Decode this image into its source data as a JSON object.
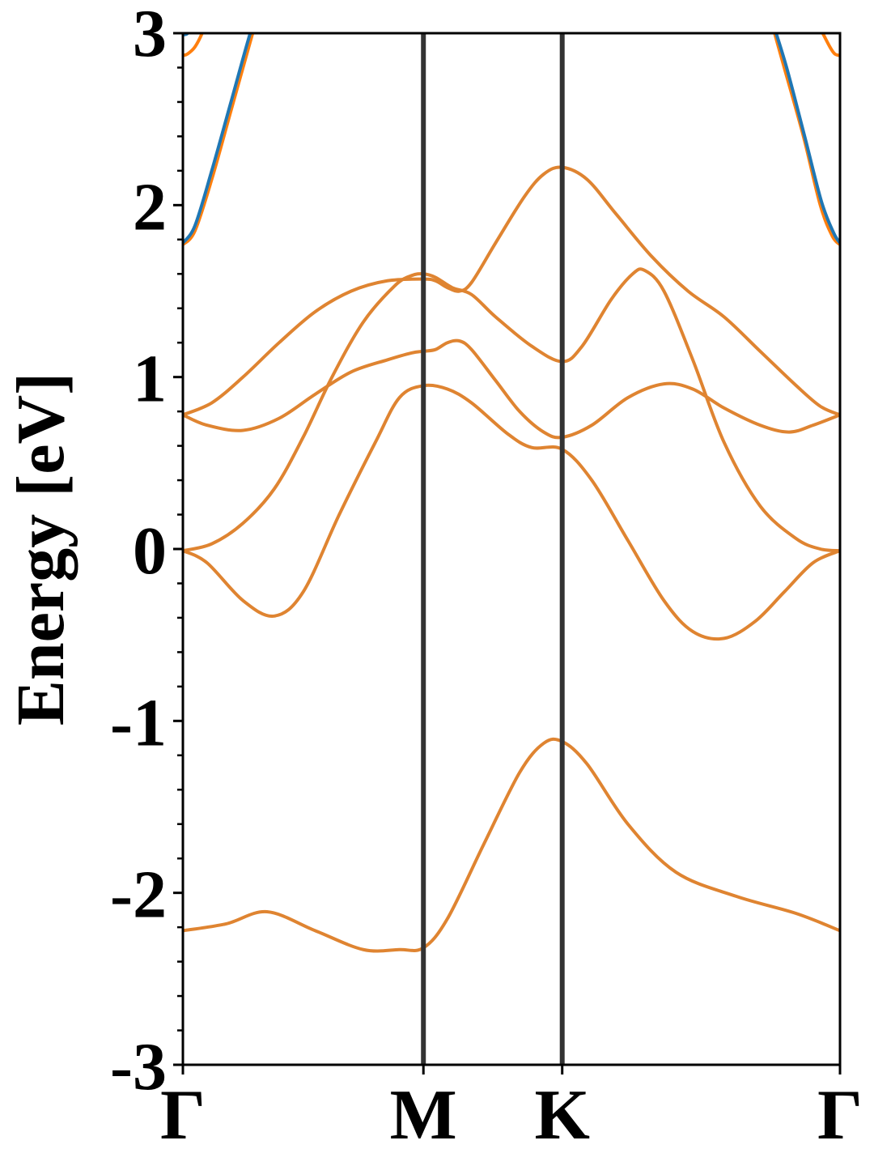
{
  "chart_data": {
    "type": "line",
    "title": "",
    "xlabel": "",
    "ylabel": "Energy [eV]",
    "ylim": [
      -3,
      3
    ],
    "yticks": [
      -3,
      -2,
      -1,
      0,
      1,
      2,
      3
    ],
    "y_minor_step": 0.2,
    "xlim": [
      0,
      2.732
    ],
    "kpath": [
      {
        "label": "Γ",
        "x": 0
      },
      {
        "label": "M",
        "x": 1.0
      },
      {
        "label": "K",
        "x": 1.577
      },
      {
        "label": "Γ",
        "x": 2.732
      }
    ],
    "grid": false,
    "legend": "none",
    "colors": {
      "spin_up": "#1f77b4",
      "spin_down": "#ff7f0e",
      "overlap": "#df8431",
      "kline": "#333333"
    },
    "series": [
      {
        "id": "band1",
        "points": [
          [
            0,
            -2.22
          ],
          [
            0.18,
            -2.18
          ],
          [
            0.35,
            -2.11
          ],
          [
            0.55,
            -2.22
          ],
          [
            0.75,
            -2.33
          ],
          [
            0.9,
            -2.33
          ],
          [
            1.0,
            -2.32
          ],
          [
            1.1,
            -2.15
          ],
          [
            1.25,
            -1.72
          ],
          [
            1.4,
            -1.3
          ],
          [
            1.5,
            -1.13
          ],
          [
            1.577,
            -1.12
          ],
          [
            1.68,
            -1.25
          ],
          [
            1.85,
            -1.6
          ],
          [
            2.05,
            -1.88
          ],
          [
            2.3,
            -2.02
          ],
          [
            2.55,
            -2.12
          ],
          [
            2.732,
            -2.22
          ]
        ]
      },
      {
        "id": "band2",
        "points": [
          [
            0,
            -0.01
          ],
          [
            0.1,
            -0.08
          ],
          [
            0.25,
            -0.3
          ],
          [
            0.38,
            -0.39
          ],
          [
            0.5,
            -0.25
          ],
          [
            0.65,
            0.2
          ],
          [
            0.8,
            0.62
          ],
          [
            0.9,
            0.88
          ],
          [
            1.0,
            0.95
          ],
          [
            1.1,
            0.93
          ],
          [
            1.2,
            0.85
          ],
          [
            1.35,
            0.67
          ],
          [
            1.45,
            0.59
          ],
          [
            1.577,
            0.58
          ],
          [
            1.7,
            0.4
          ],
          [
            1.85,
            0.05
          ],
          [
            2.0,
            -0.3
          ],
          [
            2.12,
            -0.48
          ],
          [
            2.25,
            -0.52
          ],
          [
            2.38,
            -0.42
          ],
          [
            2.5,
            -0.25
          ],
          [
            2.62,
            -0.08
          ],
          [
            2.732,
            -0.01
          ]
        ]
      },
      {
        "id": "band3",
        "points": [
          [
            0,
            -0.01
          ],
          [
            0.12,
            0.03
          ],
          [
            0.25,
            0.15
          ],
          [
            0.38,
            0.35
          ],
          [
            0.5,
            0.65
          ],
          [
            0.62,
            1.0
          ],
          [
            0.75,
            1.32
          ],
          [
            0.88,
            1.53
          ],
          [
            0.95,
            1.59
          ],
          [
            1.0,
            1.6
          ],
          [
            1.05,
            1.58
          ],
          [
            1.12,
            1.52
          ],
          [
            1.2,
            1.48
          ],
          [
            1.3,
            1.35
          ],
          [
            1.45,
            1.18
          ],
          [
            1.577,
            1.09
          ],
          [
            1.66,
            1.18
          ],
          [
            1.78,
            1.45
          ],
          [
            1.87,
            1.6
          ],
          [
            1.92,
            1.62
          ],
          [
            2.0,
            1.5
          ],
          [
            2.12,
            1.1
          ],
          [
            2.25,
            0.62
          ],
          [
            2.4,
            0.25
          ],
          [
            2.55,
            0.06
          ],
          [
            2.65,
            0.0
          ],
          [
            2.732,
            -0.01
          ]
        ]
      },
      {
        "id": "band4",
        "points": [
          [
            0,
            0.78
          ],
          [
            0.1,
            0.72
          ],
          [
            0.25,
            0.69
          ],
          [
            0.4,
            0.76
          ],
          [
            0.55,
            0.9
          ],
          [
            0.7,
            1.03
          ],
          [
            0.85,
            1.1
          ],
          [
            0.95,
            1.14
          ],
          [
            1.0,
            1.15
          ],
          [
            1.05,
            1.16
          ],
          [
            1.1,
            1.2
          ],
          [
            1.15,
            1.21
          ],
          [
            1.2,
            1.16
          ],
          [
            1.3,
            0.98
          ],
          [
            1.4,
            0.8
          ],
          [
            1.5,
            0.68
          ],
          [
            1.577,
            0.65
          ],
          [
            1.7,
            0.72
          ],
          [
            1.85,
            0.88
          ],
          [
            2.0,
            0.96
          ],
          [
            2.12,
            0.93
          ],
          [
            2.25,
            0.82
          ],
          [
            2.4,
            0.72
          ],
          [
            2.52,
            0.68
          ],
          [
            2.62,
            0.72
          ],
          [
            2.732,
            0.78
          ]
        ]
      },
      {
        "id": "band5",
        "points": [
          [
            0,
            0.78
          ],
          [
            0.12,
            0.85
          ],
          [
            0.25,
            1.0
          ],
          [
            0.4,
            1.2
          ],
          [
            0.55,
            1.38
          ],
          [
            0.7,
            1.5
          ],
          [
            0.85,
            1.56
          ],
          [
            1.0,
            1.57
          ],
          [
            1.05,
            1.56
          ],
          [
            1.1,
            1.52
          ],
          [
            1.15,
            1.5
          ],
          [
            1.2,
            1.55
          ],
          [
            1.3,
            1.78
          ],
          [
            1.42,
            2.05
          ],
          [
            1.5,
            2.18
          ],
          [
            1.577,
            2.22
          ],
          [
            1.68,
            2.15
          ],
          [
            1.8,
            1.95
          ],
          [
            1.95,
            1.7
          ],
          [
            2.1,
            1.5
          ],
          [
            2.25,
            1.35
          ],
          [
            2.4,
            1.15
          ],
          [
            2.55,
            0.95
          ],
          [
            2.65,
            0.83
          ],
          [
            2.732,
            0.78
          ]
        ]
      },
      {
        "id": "band6_down",
        "color": "#ff7f0e",
        "points": [
          [
            0,
            1.77
          ],
          [
            0.05,
            1.85
          ],
          [
            0.12,
            2.15
          ],
          [
            0.2,
            2.55
          ],
          [
            0.28,
            2.95
          ],
          [
            0.3,
            3.05
          ]
        ]
      },
      {
        "id": "band6_up",
        "color": "#1f77b4",
        "points": [
          [
            0,
            1.78
          ],
          [
            0.05,
            1.88
          ],
          [
            0.12,
            2.2
          ],
          [
            0.2,
            2.6
          ],
          [
            0.28,
            3.0
          ],
          [
            0.3,
            3.05
          ]
        ]
      },
      {
        "id": "band7_down",
        "color": "#ff7f0e",
        "points": [
          [
            2.45,
            3.05
          ],
          [
            2.5,
            2.8
          ],
          [
            2.58,
            2.4
          ],
          [
            2.65,
            2.0
          ],
          [
            2.7,
            1.82
          ],
          [
            2.732,
            1.77
          ]
        ]
      },
      {
        "id": "band7_up",
        "color": "#1f77b4",
        "points": [
          [
            2.455,
            3.05
          ],
          [
            2.51,
            2.8
          ],
          [
            2.585,
            2.4
          ],
          [
            2.655,
            2.02
          ],
          [
            2.705,
            1.84
          ],
          [
            2.732,
            1.78
          ]
        ]
      },
      {
        "id": "band8_down",
        "color": "#ff7f0e",
        "points": [
          [
            0,
            2.87
          ],
          [
            0.02,
            2.88
          ],
          [
            0.05,
            2.92
          ],
          [
            0.08,
            3.0
          ],
          [
            0.09,
            3.05
          ]
        ]
      },
      {
        "id": "band8_up",
        "color": "#1f77b4",
        "points": [
          [
            0,
            2.99
          ],
          [
            0.02,
            3.0
          ],
          [
            0.03,
            3.05
          ]
        ]
      },
      {
        "id": "band9_down",
        "color": "#ff7f0e",
        "points": [
          [
            2.64,
            3.05
          ],
          [
            2.66,
            3.0
          ],
          [
            2.69,
            2.92
          ],
          [
            2.71,
            2.88
          ],
          [
            2.732,
            2.87
          ]
        ]
      }
    ]
  }
}
